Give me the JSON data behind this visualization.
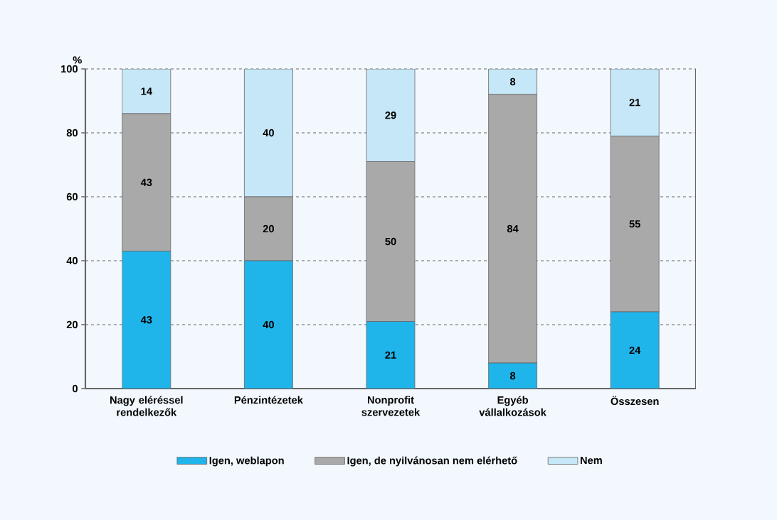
{
  "chart_data": {
    "type": "bar",
    "stacked": true,
    "ylabel": "%",
    "categories": [
      "Nagy eléréssel rendelkezők",
      "Pénzintézetek",
      "Nonprofit szervezetek",
      "Egyéb vállalkozások",
      "Összesen"
    ],
    "series": [
      {
        "name": "Igen, weblapon",
        "color": "#1fb4ea",
        "values": [
          43,
          40,
          21,
          8,
          24
        ]
      },
      {
        "name": "Igen, de nyilvánosan nem elérhető",
        "color": "#a9a9a9",
        "values": [
          43,
          20,
          50,
          84,
          55
        ]
      },
      {
        "name": "Nem",
        "color": "#c6e7f8",
        "values": [
          14,
          40,
          29,
          8,
          21
        ]
      }
    ],
    "ylim": [
      0,
      100
    ],
    "yticks": [
      0,
      20,
      40,
      60,
      80,
      100
    ],
    "grid": "y",
    "legend": "bottom",
    "data_labels": true
  }
}
